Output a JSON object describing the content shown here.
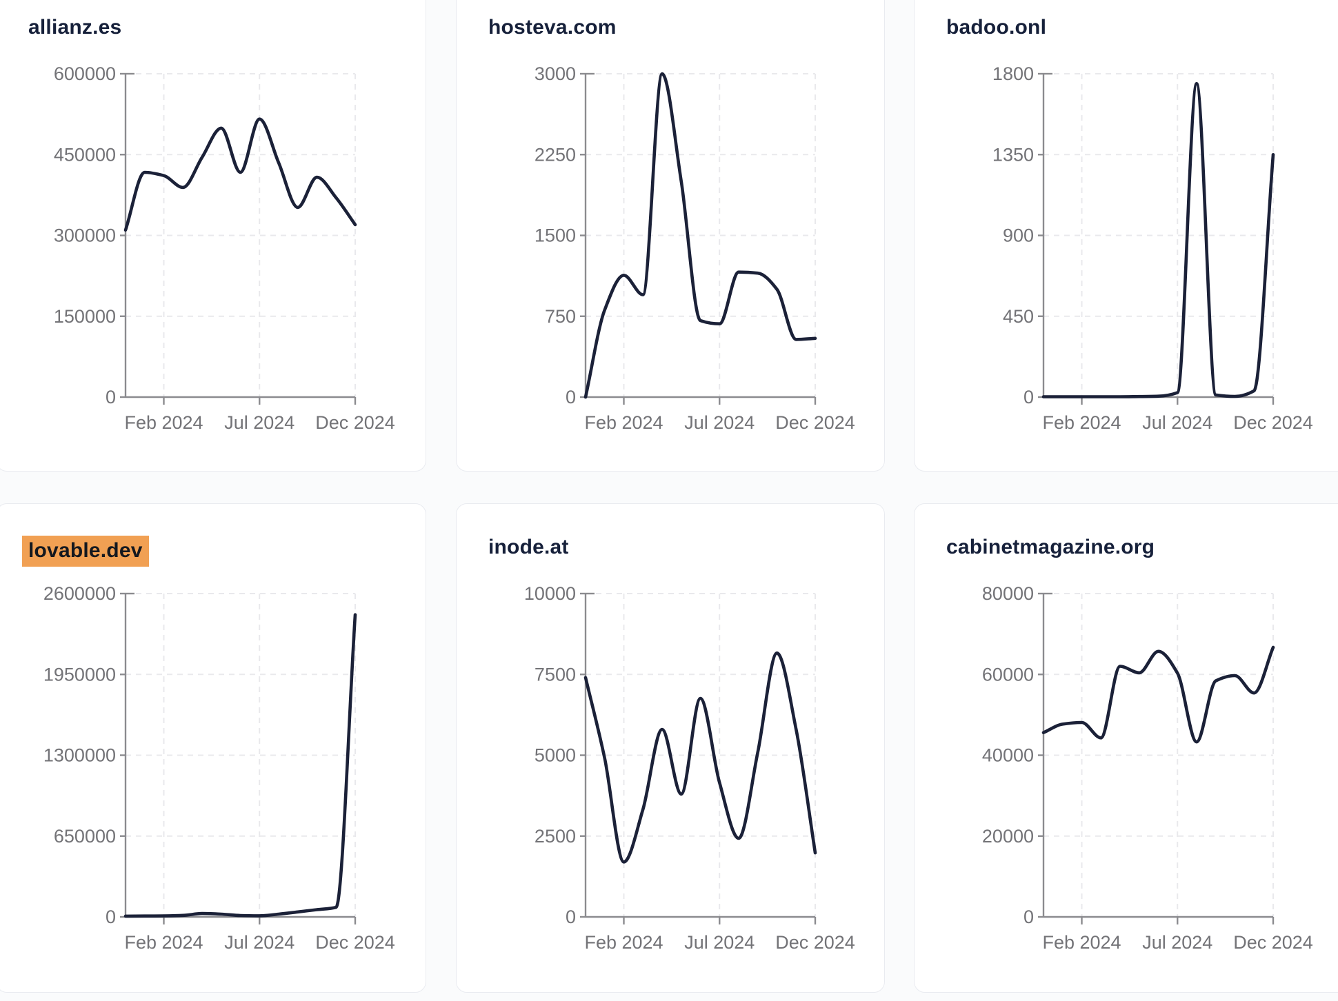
{
  "theme": {
    "page_background": "#fafbfc",
    "card_background": "#ffffff",
    "card_border": "#e9ebf0",
    "series_line_color": "#1b2138",
    "title_color": "#16203a",
    "tick_label_color": "#737377",
    "axis_color": "#8b8b8f",
    "grid_color": "#e9e9ec",
    "highlight_background": "#f1a053",
    "highlight_text_color": "#14181f"
  },
  "x_axis": {
    "tick_labels": [
      "Feb 2024",
      "Jul 2024",
      "Dec 2024"
    ],
    "tick_indices": [
      2,
      7,
      12
    ]
  },
  "chart_data": [
    {
      "type": "line",
      "title": "allianz.es",
      "highlighted": false,
      "x": [
        "2023-12",
        "2024-01",
        "2024-02",
        "2024-03",
        "2024-04",
        "2024-05",
        "2024-06",
        "2024-07",
        "2024-08",
        "2024-09",
        "2024-10",
        "2024-11",
        "2024-12"
      ],
      "values": [
        310000,
        417000,
        411000,
        389000,
        445000,
        499000,
        417000,
        516000,
        435000,
        352000,
        408000,
        370000,
        320000
      ],
      "y_ticks": [
        0,
        150000,
        300000,
        450000,
        600000
      ],
      "ylim": [
        0,
        600000
      ],
      "x_tick_labels": [
        "Feb 2024",
        "Jul 2024",
        "Dec 2024"
      ],
      "grid": "dashed",
      "legend": "none"
    },
    {
      "type": "line",
      "title": "hosteva.com",
      "highlighted": false,
      "x": [
        "2023-12",
        "2024-01",
        "2024-02",
        "2024-03",
        "2024-04",
        "2024-05",
        "2024-06",
        "2024-07",
        "2024-08",
        "2024-09",
        "2024-10",
        "2024-11",
        "2024-12"
      ],
      "values": [
        0,
        810,
        1130,
        950,
        3000,
        2000,
        710,
        680,
        1160,
        1150,
        1000,
        535,
        545
      ],
      "y_ticks": [
        0,
        750,
        1500,
        2250,
        3000
      ],
      "ylim": [
        0,
        3000
      ],
      "x_tick_labels": [
        "Feb 2024",
        "Jul 2024",
        "Dec 2024"
      ],
      "grid": "dashed",
      "legend": "none"
    },
    {
      "type": "line",
      "title": "badoo.onl",
      "highlighted": false,
      "x": [
        "2023-12",
        "2024-01",
        "2024-02",
        "2024-03",
        "2024-04",
        "2024-05",
        "2024-06",
        "2024-07",
        "2024-08",
        "2024-09",
        "2024-10",
        "2024-11",
        "2024-12"
      ],
      "values": [
        2,
        2,
        2,
        2,
        2,
        3,
        5,
        25,
        1745,
        12,
        4,
        35,
        1350
      ],
      "y_ticks": [
        0,
        450,
        900,
        1350,
        1800
      ],
      "ylim": [
        0,
        1800
      ],
      "x_tick_labels": [
        "Feb 2024",
        "Jul 2024",
        "Dec 2024"
      ],
      "grid": "dashed",
      "legend": "none"
    },
    {
      "type": "line",
      "title": "lovable.dev",
      "highlighted": true,
      "x": [
        "2023-12",
        "2024-01",
        "2024-02",
        "2024-03",
        "2024-04",
        "2024-05",
        "2024-06",
        "2024-07",
        "2024-08",
        "2024-09",
        "2024-10",
        "2024-11",
        "2024-12"
      ],
      "values": [
        6000,
        7000,
        8000,
        12000,
        27000,
        22000,
        11000,
        9000,
        22000,
        40000,
        58000,
        77000,
        2430000
      ],
      "y_ticks": [
        0,
        650000,
        1300000,
        1950000,
        2600000
      ],
      "ylim": [
        0,
        2600000
      ],
      "x_tick_labels": [
        "Feb 2024",
        "Jul 2024",
        "Dec 2024"
      ],
      "grid": "dashed",
      "legend": "none"
    },
    {
      "type": "line",
      "title": "inode.at",
      "highlighted": false,
      "x": [
        "2023-12",
        "2024-01",
        "2024-02",
        "2024-03",
        "2024-04",
        "2024-05",
        "2024-06",
        "2024-07",
        "2024-08",
        "2024-09",
        "2024-10",
        "2024-11",
        "2024-12"
      ],
      "values": [
        7400,
        4900,
        1700,
        3330,
        5800,
        3800,
        6760,
        4150,
        2430,
        5100,
        8160,
        5800,
        1980
      ],
      "y_ticks": [
        0,
        2500,
        5000,
        7500,
        10000
      ],
      "ylim": [
        0,
        10000
      ],
      "x_tick_labels": [
        "Feb 2024",
        "Jul 2024",
        "Dec 2024"
      ],
      "grid": "dashed",
      "legend": "none"
    },
    {
      "type": "line",
      "title": "cabinetmagazine.org",
      "highlighted": false,
      "x": [
        "2023-12",
        "2024-01",
        "2024-02",
        "2024-03",
        "2024-04",
        "2024-05",
        "2024-06",
        "2024-07",
        "2024-08",
        "2024-09",
        "2024-10",
        "2024-11",
        "2024-12"
      ],
      "values": [
        45600,
        47700,
        48100,
        44300,
        62000,
        60400,
        65700,
        60300,
        43300,
        58400,
        59700,
        55400,
        66700
      ],
      "y_ticks": [
        0,
        20000,
        40000,
        60000,
        80000
      ],
      "ylim": [
        0,
        80000
      ],
      "x_tick_labels": [
        "Feb 2024",
        "Jul 2024",
        "Dec 2024"
      ],
      "grid": "dashed",
      "legend": "none"
    }
  ]
}
